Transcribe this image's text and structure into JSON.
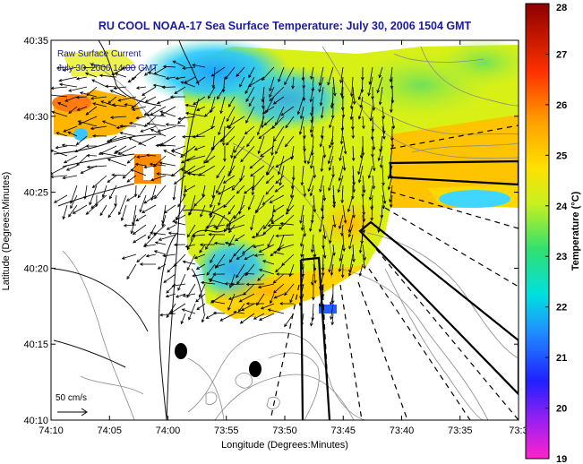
{
  "chart_data": {
    "type": "heatmap",
    "title": "RU COOL  NOAA-17  Sea Surface Temperature:  July 30, 2006 1504 GMT",
    "xlabel": "Longitude (Degrees:Minutes)",
    "ylabel": "Latitude (Degrees:Minutes)",
    "x_ticks": [
      "74:10",
      "74:05",
      "74:00",
      "73:55",
      "73:50",
      "73:45",
      "73:40",
      "73:35",
      "73:3"
    ],
    "x_range": [
      -74.1667,
      -73.5
    ],
    "y_ticks": [
      "40:10",
      "40:15",
      "40:20",
      "40:25",
      "40:30",
      "40:35"
    ],
    "y_range": [
      40.1667,
      40.5833
    ],
    "colorbar": {
      "label": "Temperature (°C)",
      "ticks": [
        "19",
        "20",
        "21",
        "22",
        "23",
        "24",
        "25",
        "26",
        "27",
        "28"
      ],
      "range": [
        19,
        28
      ]
    },
    "annotation": {
      "line1": "Raw Surface Current",
      "line2": "July 30, 2006 14:00 GMT"
    },
    "scale_label": "50 cm/s",
    "grid": false
  },
  "colors": {
    "title": "#1a1aa0",
    "annotation": "#1a1aa0",
    "coast": "#111111",
    "contour": "#8a8a8a"
  }
}
